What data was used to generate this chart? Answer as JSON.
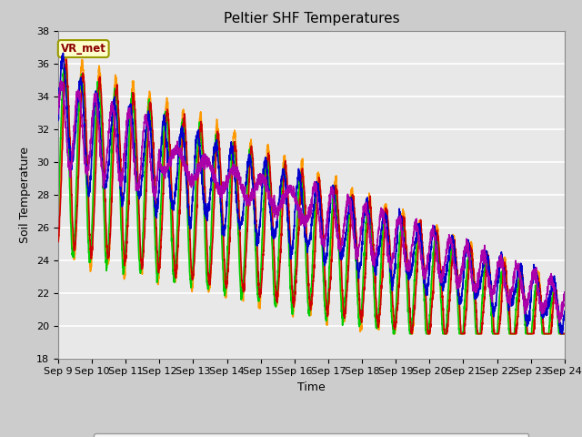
{
  "title": "Peltier SHF Temperatures",
  "xlabel": "Time",
  "ylabel": "Soil Temperature",
  "ylim": [
    18,
    38
  ],
  "xlim": [
    0,
    15
  ],
  "x_tick_labels": [
    "Sep 9",
    "Sep 10",
    "Sep 11",
    "Sep 12",
    "Sep 13",
    "Sep 14",
    "Sep 15",
    "Sep 16",
    "Sep 17",
    "Sep 18",
    "Sep 19",
    "Sep 20",
    "Sep 21",
    "Sep 22",
    "Sep 23",
    "Sep 24"
  ],
  "annotation_text": "VR_met",
  "series_colors": {
    "pSHF_T1": "#cc0000",
    "pSHF_T2": "#ff9900",
    "pSHF_T3": "#00cc00",
    "pSHF_T4": "#0000cc",
    "pSHF_T5": "#aa00aa"
  },
  "fig_bg_color": "#cccccc",
  "plot_bg_color": "#e8e8e8",
  "grid_color": "#ffffff",
  "title_fontsize": 11,
  "axis_fontsize": 9,
  "tick_fontsize": 8,
  "linewidth": 1.2
}
